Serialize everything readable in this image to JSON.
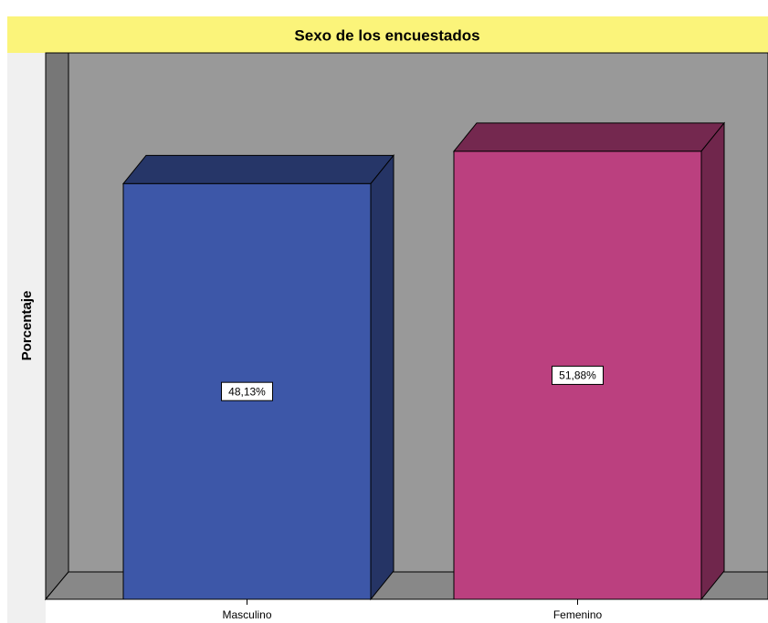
{
  "chart_data": {
    "type": "bar3d",
    "title": "Sexo de los encuestados",
    "ylabel": "Porcentaje",
    "categories": [
      "Masculino",
      "Femenino"
    ],
    "values": [
      48.13,
      51.88
    ],
    "value_labels": [
      "48,13%",
      "51,88%"
    ],
    "colors": [
      "#3d57a8",
      "#bb407f"
    ],
    "ylim": [
      0,
      60
    ]
  }
}
